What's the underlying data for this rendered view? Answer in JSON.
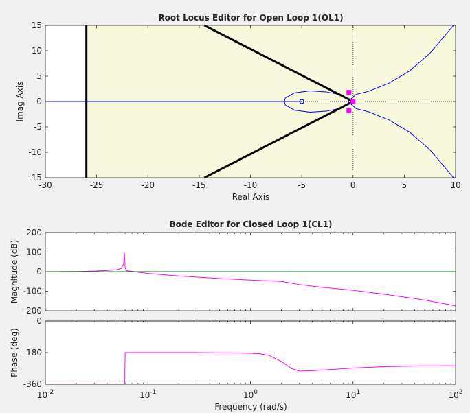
{
  "colors": {
    "figure_bg": "#f0f0f0",
    "rl_axes_bg": "#f8f8dc",
    "bode_axes_bg": "#ffffff",
    "locus": "#0000ff",
    "asymptote": "#000000",
    "closed_loop_poles": "#ff00ff",
    "bode_curve": "#ff00ff",
    "bode_reference": "#008000"
  },
  "icons": {
    "open_loop_zero": "circle-marker",
    "closed_loop_pole": "square-marker"
  },
  "chart_data": [
    {
      "type": "line",
      "title": "Root Locus Editor for Open Loop 1(OL1)",
      "xlabel": "Real Axis",
      "ylabel": "Imag Axis",
      "xlim": [
        -30,
        10
      ],
      "ylim": [
        -15,
        15
      ],
      "xticks": [
        -30,
        -25,
        -20,
        -15,
        -10,
        -5,
        0,
        5,
        10
      ],
      "yticks": [
        -15,
        -10,
        -5,
        0,
        5,
        10,
        15
      ],
      "shaded_region": {
        "x_from": -26,
        "x_to": 10,
        "y_from": -15,
        "y_to": 15
      },
      "reference_lines": {
        "x": 0,
        "y": 0,
        "style": "dotted"
      },
      "series": [
        {
          "points": [
            [
              -30,
              0
            ],
            [
              -5,
              0
            ]
          ]
        },
        {
          "points": [
            [
              -1.4,
              1.4
            ],
            [
              -2.6,
              1.9
            ],
            [
              -4.2,
              2.1
            ],
            [
              -5.7,
              1.7
            ],
            [
              -6.6,
              0.7
            ],
            [
              -6.7,
              0
            ],
            [
              -6.6,
              -0.7
            ],
            [
              -5.7,
              -1.7
            ],
            [
              -4.2,
              -2.1
            ],
            [
              -2.6,
              -1.9
            ],
            [
              -1.4,
              -1.4
            ]
          ]
        },
        {
          "points": [
            [
              0.3,
              1.4
            ],
            [
              1.5,
              2.0
            ],
            [
              3.5,
              3.6
            ],
            [
              5.5,
              6.0
            ],
            [
              7.5,
              9.5
            ],
            [
              9.8,
              15
            ]
          ]
        },
        {
          "points": [
            [
              0.3,
              -1.4
            ],
            [
              1.5,
              -2.0
            ],
            [
              3.5,
              -3.6
            ],
            [
              5.5,
              -6.0
            ],
            [
              7.5,
              -9.5
            ],
            [
              9.8,
              -15
            ]
          ]
        },
        {
          "points": [
            [
              -0.5,
              0
            ],
            [
              0.3,
              1.4
            ]
          ]
        },
        {
          "points": [
            [
              -0.5,
              0
            ],
            [
              0.3,
              -1.4
            ]
          ]
        }
      ],
      "asymptotes": [
        {
          "points": [
            [
              -26,
              -15
            ],
            [
              -26,
              15
            ]
          ]
        },
        {
          "points": [
            [
              -14.5,
              15
            ],
            [
              0,
              0
            ]
          ]
        },
        {
          "points": [
            [
              -14.5,
              -15
            ],
            [
              0,
              0
            ]
          ]
        }
      ],
      "zeros": [
        [
          -5,
          0
        ]
      ],
      "closed_loop_poles": [
        [
          -0.4,
          1.8
        ],
        [
          -0.4,
          -1.8
        ],
        [
          0,
          0
        ]
      ]
    },
    {
      "type": "line",
      "title": "Bode Editor for Closed Loop 1(CL1)",
      "xlabel": "",
      "ylabel": "Magnitude (dB)",
      "xscale": "log",
      "xlim": [
        0.01,
        100
      ],
      "ylim": [
        -200,
        200
      ],
      "yticks": [
        -200,
        -100,
        0,
        100,
        200
      ],
      "series": [
        {
          "x": [
            0.01,
            0.02,
            0.03,
            0.04,
            0.05,
            0.055,
            0.058,
            0.059,
            0.0595,
            0.06,
            0.061,
            0.063,
            0.07,
            0.08,
            0.1,
            0.2,
            0.5,
            1.0,
            1.5,
            2.0,
            3.0,
            5.0,
            10,
            20,
            50,
            100
          ],
          "y": [
            0,
            1,
            3,
            6,
            10,
            17,
            40,
            95,
            60,
            20,
            8,
            4,
            2,
            -3,
            -9,
            -22,
            -35,
            -43,
            -47,
            -50,
            -66,
            -80,
            -95,
            -115,
            -145,
            -175
          ]
        },
        {
          "x": [
            0.01,
            100
          ],
          "y": [
            0,
            0
          ]
        }
      ]
    },
    {
      "type": "line",
      "title": "",
      "xlabel": "Frequency (rad/s)",
      "ylabel": "Phase (deg)",
      "xscale": "log",
      "xlim": [
        0.01,
        100
      ],
      "ylim": [
        -360,
        0
      ],
      "yticks": [
        -360,
        -180,
        0
      ],
      "xticks": [
        0.01,
        0.1,
        1,
        10,
        100
      ],
      "xticklabels": [
        [
          "10",
          "-2"
        ],
        [
          "10",
          "-1"
        ],
        [
          "10",
          "0"
        ],
        [
          "10",
          "1"
        ],
        [
          "10",
          "2"
        ]
      ],
      "series": [
        {
          "x": [
            0.01,
            0.02,
            0.04,
            0.058,
            0.0595,
            0.06,
            0.1,
            0.3,
            0.8,
            1.2,
            1.5,
            2.0,
            2.5,
            3.0,
            4.0,
            6.0,
            10,
            20,
            50,
            100
          ],
          "y": [
            -360,
            -360,
            -360,
            -360,
            -360,
            -180,
            -180,
            -180,
            -182,
            -186,
            -195,
            -230,
            -270,
            -285,
            -283,
            -277,
            -268,
            -260,
            -256,
            -255
          ]
        },
        {
          "x": [
            0.01,
            100
          ],
          "y": [
            0,
            0
          ]
        }
      ]
    }
  ]
}
